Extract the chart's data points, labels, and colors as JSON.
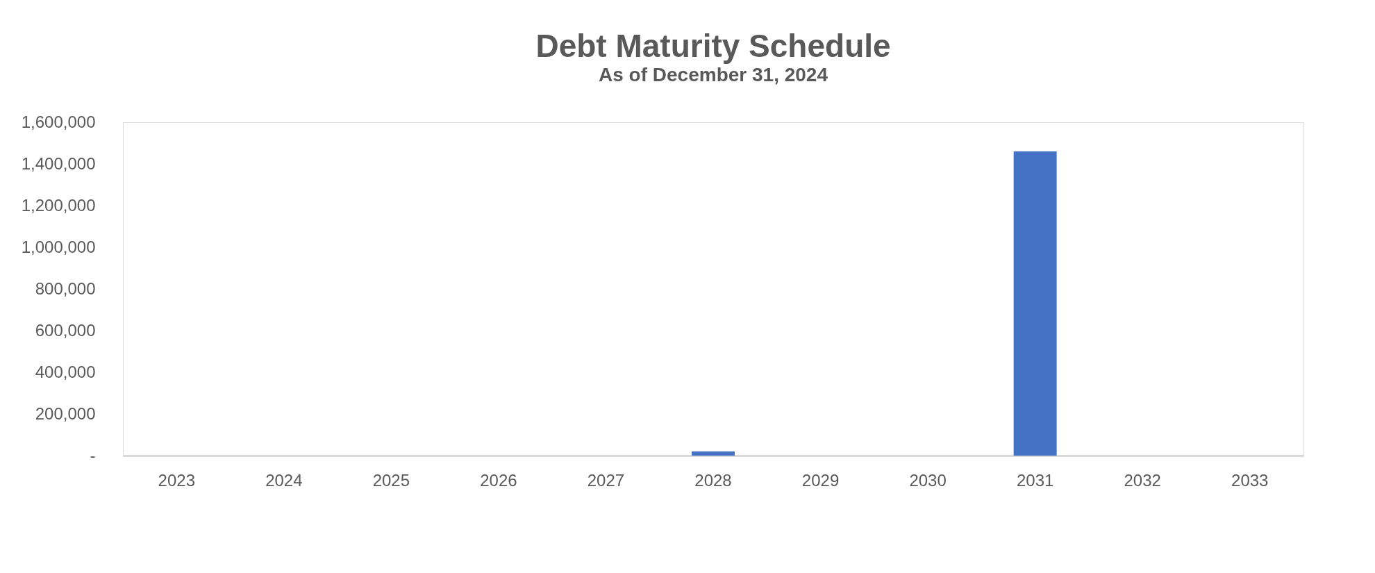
{
  "chart_data": {
    "type": "bar",
    "title": "Debt Maturity Schedule",
    "subtitle": "As of December 31, 2024",
    "categories": [
      "2023",
      "2024",
      "2025",
      "2026",
      "2027",
      "2028",
      "2029",
      "2030",
      "2031",
      "2032",
      "2033"
    ],
    "values": [
      0,
      0,
      0,
      0,
      0,
      20000,
      0,
      0,
      1460000,
      0,
      0
    ],
    "color": "#4472c4",
    "ylim": [
      0,
      1600000
    ],
    "yticks": [
      {
        "value": 0,
        "label": "-"
      },
      {
        "value": 200000,
        "label": "200,000"
      },
      {
        "value": 400000,
        "label": "400,000"
      },
      {
        "value": 600000,
        "label": "600,000"
      },
      {
        "value": 800000,
        "label": "800,000"
      },
      {
        "value": 1000000,
        "label": "1,000,000"
      },
      {
        "value": 1200000,
        "label": "1,200,000"
      },
      {
        "value": 1400000,
        "label": "1,400,000"
      },
      {
        "value": 1600000,
        "label": "1,600,000"
      }
    ],
    "grid": false
  }
}
